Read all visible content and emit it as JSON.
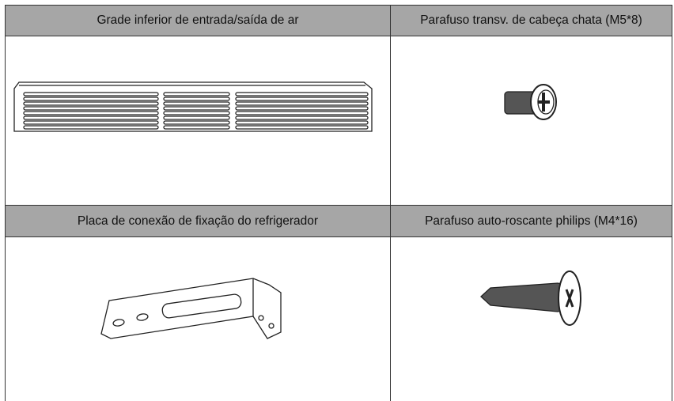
{
  "table": {
    "cells": [
      {
        "label": "Grade inferior de entrada/saída de ar"
      },
      {
        "label": "Parafuso transv. de cabeça chata (M5*8)"
      },
      {
        "label": "Placa de conexão de fixação do refrigerador"
      },
      {
        "label": "Parafuso auto-roscante philips (M4*16)"
      }
    ]
  }
}
